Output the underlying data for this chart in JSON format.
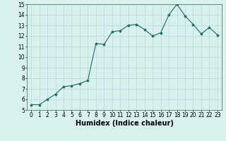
{
  "x": [
    0,
    1,
    2,
    3,
    4,
    5,
    6,
    7,
    8,
    9,
    10,
    11,
    12,
    13,
    14,
    15,
    16,
    17,
    18,
    19,
    20,
    21,
    22,
    23
  ],
  "y": [
    5.5,
    5.5,
    6.0,
    6.5,
    7.2,
    7.3,
    7.5,
    7.8,
    11.3,
    11.2,
    12.4,
    12.5,
    13.0,
    13.1,
    12.6,
    12.0,
    12.3,
    14.0,
    15.0,
    13.9,
    13.1,
    12.2,
    12.8,
    12.1
  ],
  "line_color": "#1a6b5e",
  "marker": "*",
  "marker_size": 3,
  "bg_color": "#d8f0ee",
  "grid_color": "#b8dad6",
  "xlabel": "Humidex (Indice chaleur)",
  "xlim": [
    -0.5,
    23.5
  ],
  "ylim": [
    5,
    15
  ],
  "yticks": [
    5,
    6,
    7,
    8,
    9,
    10,
    11,
    12,
    13,
    14,
    15
  ],
  "xticks": [
    0,
    1,
    2,
    3,
    4,
    5,
    6,
    7,
    8,
    9,
    10,
    11,
    12,
    13,
    14,
    15,
    16,
    17,
    18,
    19,
    20,
    21,
    22,
    23
  ],
  "tick_fontsize": 5.5,
  "xlabel_fontsize": 7,
  "xlabel_bold": true
}
